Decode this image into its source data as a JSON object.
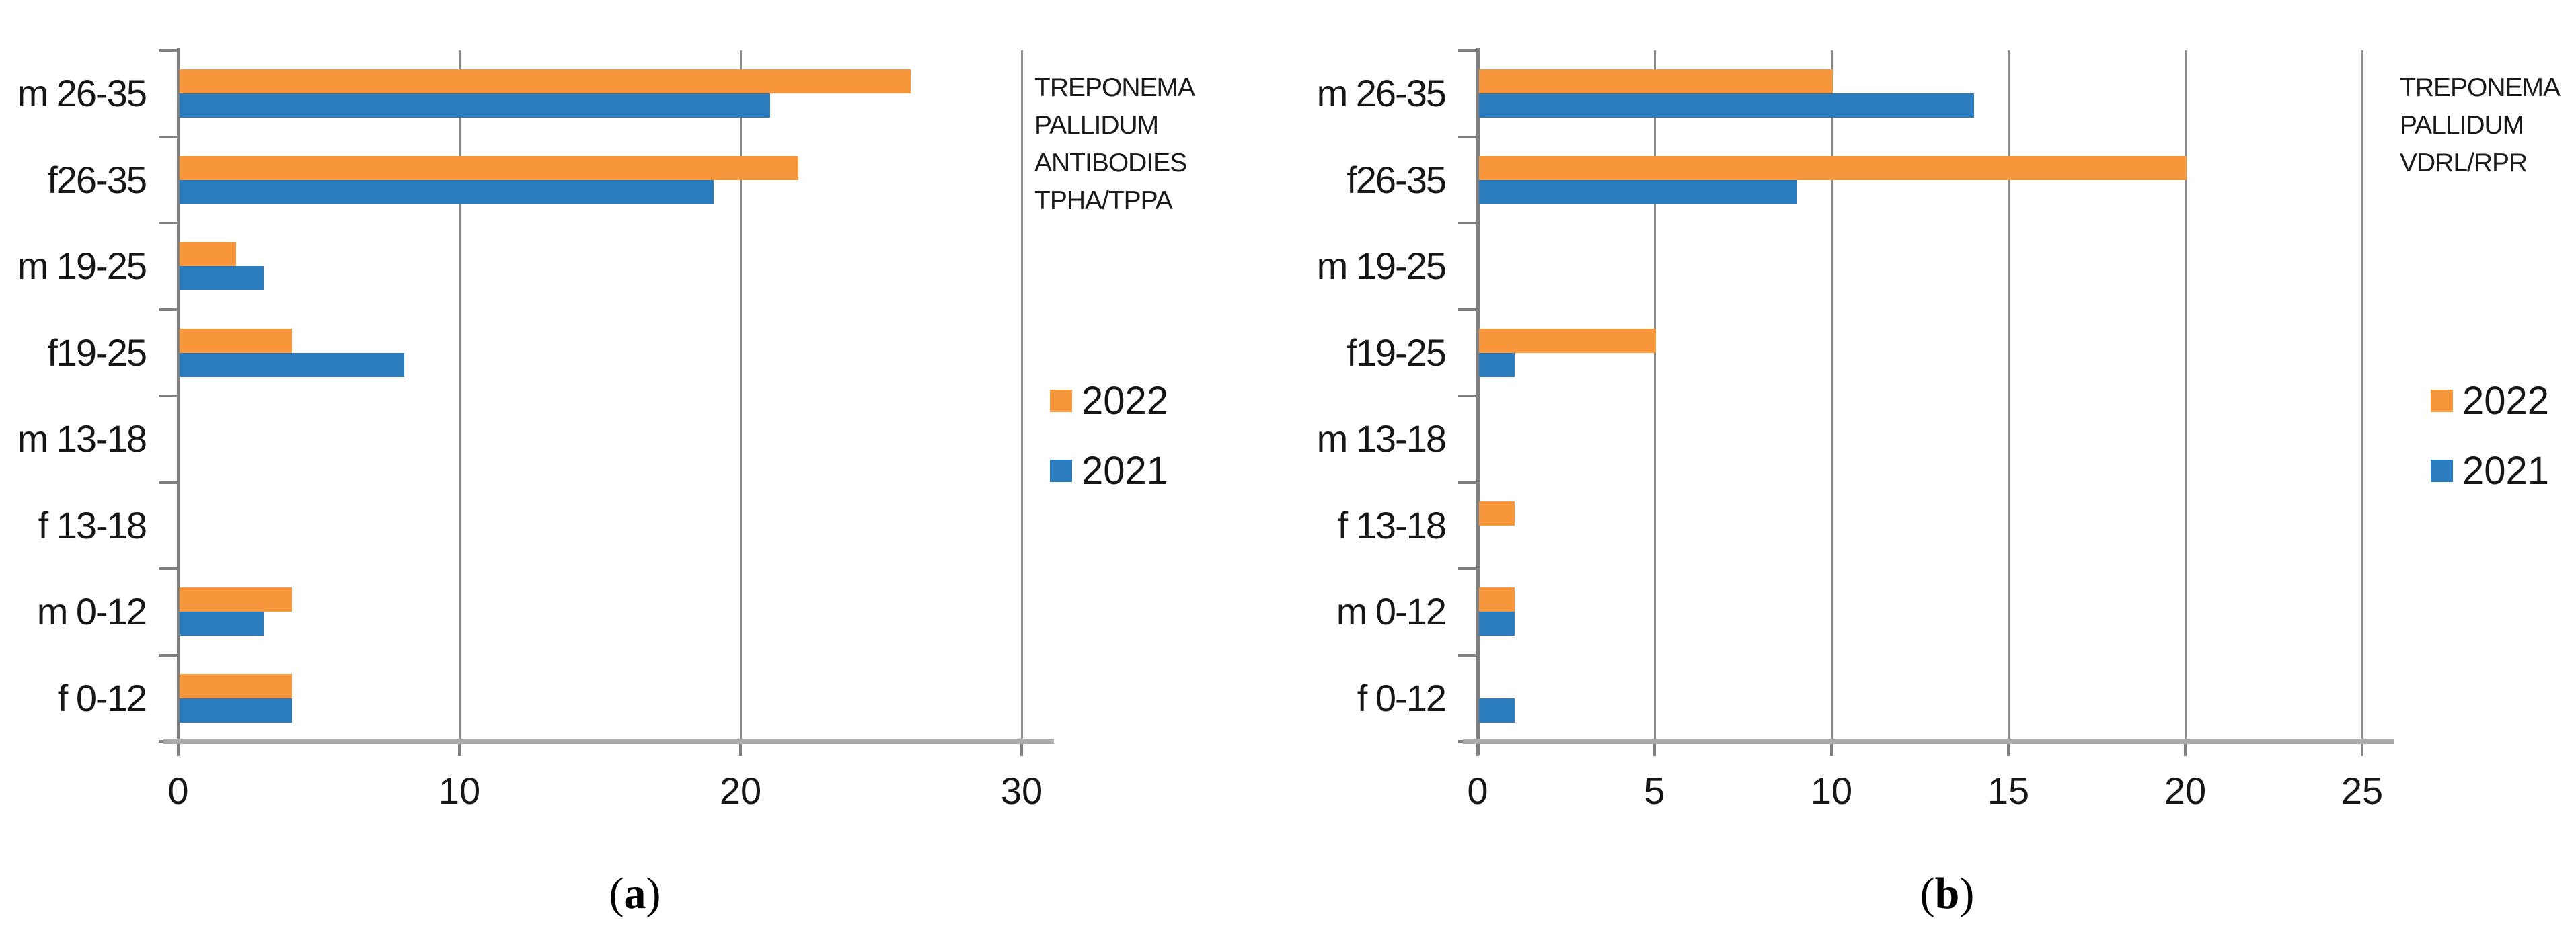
{
  "figure": {
    "captions": [
      {
        "open": "(",
        "letter": "a",
        "close": ")"
      },
      {
        "open": "(",
        "letter": "b",
        "close": ")"
      }
    ]
  },
  "colors": {
    "series_2022": "#F8963C",
    "series_2021": "#2B7CBF",
    "gridline": "#8C8C8C",
    "axis_line": "#7F7F7F",
    "axis_band": "#ACACAC",
    "text": "#161616"
  },
  "chart_data": [
    {
      "id": "a",
      "type": "bar",
      "orientation": "horizontal",
      "title": "TREPONEMA PALLIDUM ANTIBODIES TPHA/TPPA",
      "legend_title_lines": [
        "TREPONEMA",
        "PALLIDUM",
        "ANTIBODIES",
        "TPHA/TPPA"
      ],
      "categories": [
        "m 26-35",
        "f26-35",
        "m 19-25",
        "f19-25",
        "m 13-18",
        "f 13-18",
        "m 0-12",
        "f 0-12"
      ],
      "series": [
        {
          "name": "2022",
          "color": "#F8963C",
          "values": [
            26,
            22,
            2,
            4,
            0,
            0,
            4,
            4
          ]
        },
        {
          "name": "2021",
          "color": "#2B7CBF",
          "values": [
            21,
            19,
            3,
            8,
            0,
            0,
            3,
            4
          ]
        }
      ],
      "xlim": [
        0,
        30
      ],
      "xticks": [
        0,
        10,
        20,
        30
      ],
      "xlabel": "",
      "ylabel": "",
      "grid": true,
      "legend_position": "right"
    },
    {
      "id": "b",
      "type": "bar",
      "orientation": "horizontal",
      "title": "TREPONEMA PALLIDUM VDRL/RPR",
      "legend_title_lines": [
        "TREPONEMA",
        "PALLIDUM",
        "VDRL/RPR"
      ],
      "categories": [
        "m 26-35",
        "f26-35",
        "m 19-25",
        "f19-25",
        "m 13-18",
        "f 13-18",
        "m 0-12",
        "f 0-12"
      ],
      "series": [
        {
          "name": "2022",
          "color": "#F8963C",
          "values": [
            10,
            20,
            0,
            5,
            0,
            1,
            1,
            0
          ]
        },
        {
          "name": "2021",
          "color": "#2B7CBF",
          "values": [
            14,
            9,
            0,
            1,
            0,
            0,
            1,
            1
          ]
        }
      ],
      "xlim": [
        0,
        25
      ],
      "xticks": [
        0,
        5,
        10,
        15,
        20,
        25
      ],
      "xlabel": "",
      "ylabel": "",
      "grid": true,
      "legend_position": "right"
    }
  ]
}
